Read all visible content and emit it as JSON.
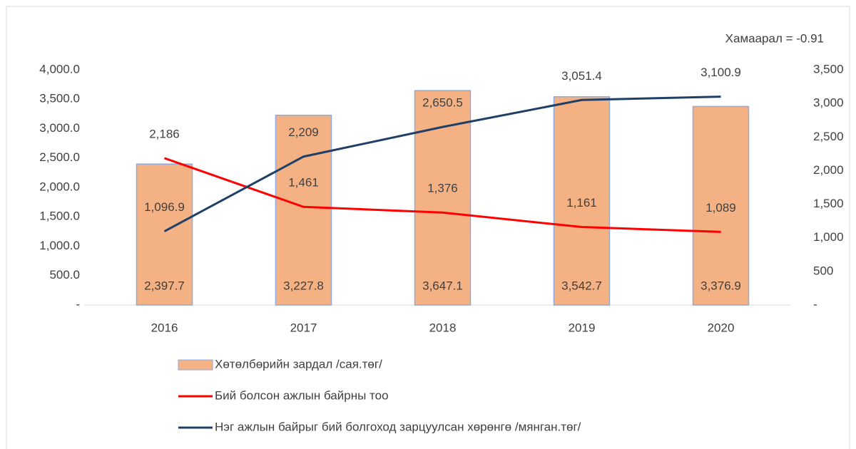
{
  "chart_data": {
    "type": "bar",
    "annotation": "Хамаарал = -0.91",
    "categories": [
      "2016",
      "2017",
      "2018",
      "2019",
      "2020"
    ],
    "series": [
      {
        "name": "Хөтөлбөрийн зардал /сая.төг/",
        "type": "bar",
        "color": "#f4b183",
        "values": [
          2397.7,
          3227.8,
          3647.1,
          3542.7,
          3376.9
        ],
        "value_labels": [
          "2,397.7",
          "3,227.8",
          "3,647.1",
          "3,542.7",
          "3,376.9"
        ]
      },
      {
        "name": "Бий болсон ажлын байрны тоо",
        "type": "line",
        "axis": "y2",
        "color": "#ff0000",
        "values": [
          2186,
          1461,
          1376,
          1161,
          1089
        ],
        "value_labels": [
          "2,186",
          "1,461",
          "1,376",
          "1,161",
          "1,089"
        ]
      },
      {
        "name": "Нэг ажлын байрыг бий болгоход зарцуулсан хөрөнгө /мянган.төг/",
        "type": "line",
        "axis": "y2",
        "color": "#1f3f66",
        "values": [
          1096.9,
          2209,
          2650.5,
          3051.4,
          3100.9
        ],
        "value_labels": [
          "1,096.9",
          "2,209",
          "2,650.5",
          "3,051.4",
          "3,100.9"
        ]
      }
    ],
    "ylim": [
      0,
      4000
    ],
    "yticks": [
      {
        "value": 0,
        "label": "-"
      },
      {
        "value": 500,
        "label": "500.0"
      },
      {
        "value": 1000,
        "label": "1,000.0"
      },
      {
        "value": 1500,
        "label": "1,500.0"
      },
      {
        "value": 2000,
        "label": "2,000.0"
      },
      {
        "value": 2500,
        "label": "2,500.0"
      },
      {
        "value": 3000,
        "label": "3,000.0"
      },
      {
        "value": 3500,
        "label": "3,500.0"
      },
      {
        "value": 4000,
        "label": "4,000.0"
      }
    ],
    "y2lim": [
      0,
      3500
    ],
    "y2ticks": [
      {
        "value": 0,
        "label": "-"
      },
      500,
      {
        "value": 1000,
        "label": "1,000"
      },
      {
        "value": 1500,
        "label": "1,500"
      },
      {
        "value": 2000,
        "label": "2,000"
      },
      {
        "value": 2500,
        "label": "2,500"
      },
      {
        "value": 3000,
        "label": "3,000"
      },
      {
        "value": 3500,
        "label": "3,500"
      }
    ],
    "grid": false
  }
}
